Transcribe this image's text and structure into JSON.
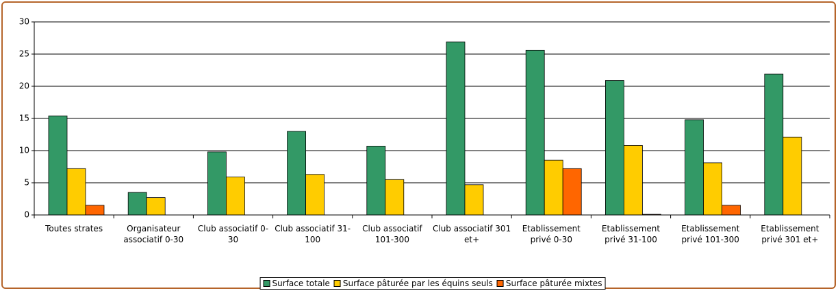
{
  "chart_data": {
    "type": "bar",
    "categories": [
      "Toutes strates",
      "Organisateur associatif 0-30",
      "Club associatif 0-30",
      "Club associatif 31-100",
      "Club associatif 101-300",
      "Club associatif 301 et+",
      "Etablissement privé 0-30",
      "Etablissement privé 31-100",
      "Etablissement privé 101-300",
      "Etablissement privé 301 et+"
    ],
    "series": [
      {
        "name": "Surface totale",
        "color": "#339966",
        "values": [
          15.4,
          3.5,
          9.8,
          13.0,
          10.7,
          26.9,
          25.6,
          20.9,
          14.8,
          21.9
        ]
      },
      {
        "name": "Surface pâturée par les équins seuls",
        "color": "#ffcc00",
        "values": [
          7.2,
          2.7,
          5.9,
          6.3,
          5.5,
          4.7,
          8.5,
          10.8,
          8.1,
          12.1
        ]
      },
      {
        "name": "Surface pâturée mixtes",
        "color": "#ff6600",
        "values": [
          1.5,
          null,
          null,
          null,
          null,
          null,
          7.2,
          0.1,
          1.5,
          null
        ]
      }
    ],
    "ylim": [
      0,
      30
    ],
    "yticks": [
      0,
      5,
      10,
      15,
      20,
      25,
      30
    ],
    "grid": true,
    "legend": "bottom"
  }
}
